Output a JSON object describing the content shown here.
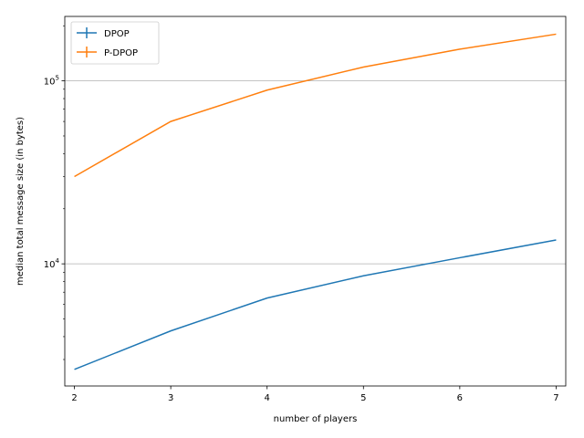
{
  "chart_data": {
    "type": "line",
    "x": [
      2,
      3,
      4,
      5,
      6,
      7
    ],
    "xlabel": "number of players",
    "ylabel": "median total message size (in bytes)",
    "yscale": "log",
    "xlim": [
      1.9,
      7.1
    ],
    "ylim": [
      2150,
      225000
    ],
    "x_ticks": [
      "2",
      "3",
      "4",
      "5",
      "6",
      "7"
    ],
    "y_ticks": [
      {
        "value": 10000,
        "label": "10",
        "exp": "4"
      },
      {
        "value": 100000,
        "label": "10",
        "exp": "5"
      }
    ],
    "grid": "y-major",
    "legend": "top-left",
    "series": [
      {
        "name": "DPOP",
        "color": "#1f77b4",
        "values": [
          2650,
          4300,
          6500,
          8600,
          10800,
          13500
        ]
      },
      {
        "name": "P-DPOP",
        "color": "#ff7f0e",
        "values": [
          30000,
          60000,
          89000,
          119000,
          149000,
          180000
        ]
      }
    ]
  }
}
